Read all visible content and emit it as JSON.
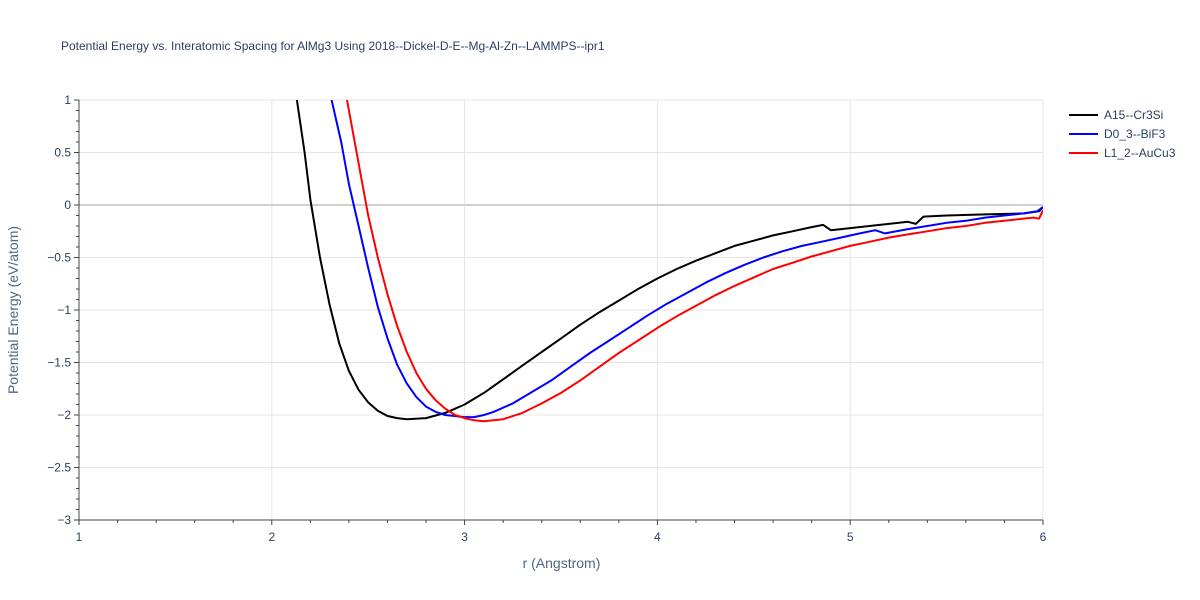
{
  "chart_data": {
    "type": "line",
    "title": "Potential Energy vs. Interatomic Spacing for AlMg3 Using 2018--Dickel-D-E--Mg-Al-Zn--LAMMPS--ipr1",
    "xlabel": "r (Angstrom)",
    "ylabel": "Potential Energy (eV/atom)",
    "xlim": [
      1,
      6
    ],
    "ylim": [
      -3,
      1
    ],
    "x_ticks": [
      1,
      2,
      3,
      4,
      5,
      6
    ],
    "x_tick_labels": [
      "1",
      "2",
      "3",
      "4",
      "5",
      "6"
    ],
    "y_ticks": [
      1,
      0.5,
      0,
      -0.5,
      -1,
      -1.5,
      -2,
      -2.5,
      -3
    ],
    "y_tick_labels": [
      "1",
      "0.5",
      "0",
      "−0.5",
      "−1",
      "−1.5",
      "−2",
      "−2.5",
      "−3"
    ],
    "grid": true,
    "legend_position": "top-right",
    "series": [
      {
        "name": "A15--Cr3Si",
        "color": "#000000",
        "points": [
          [
            2.13,
            1.0
          ],
          [
            2.17,
            0.5
          ],
          [
            2.2,
            0.05
          ],
          [
            2.25,
            -0.5
          ],
          [
            2.3,
            -0.95
          ],
          [
            2.35,
            -1.32
          ],
          [
            2.4,
            -1.58
          ],
          [
            2.45,
            -1.76
          ],
          [
            2.5,
            -1.88
          ],
          [
            2.55,
            -1.96
          ],
          [
            2.6,
            -2.01
          ],
          [
            2.65,
            -2.03
          ],
          [
            2.7,
            -2.04
          ],
          [
            2.8,
            -2.03
          ],
          [
            2.9,
            -1.98
          ],
          [
            3.0,
            -1.9
          ],
          [
            3.1,
            -1.79
          ],
          [
            3.2,
            -1.66
          ],
          [
            3.3,
            -1.53
          ],
          [
            3.4,
            -1.4
          ],
          [
            3.5,
            -1.27
          ],
          [
            3.6,
            -1.14
          ],
          [
            3.7,
            -1.02
          ],
          [
            3.8,
            -0.91
          ],
          [
            3.9,
            -0.8
          ],
          [
            4.0,
            -0.7
          ],
          [
            4.1,
            -0.61
          ],
          [
            4.2,
            -0.53
          ],
          [
            4.3,
            -0.46
          ],
          [
            4.4,
            -0.39
          ],
          [
            4.5,
            -0.34
          ],
          [
            4.6,
            -0.29
          ],
          [
            4.7,
            -0.25
          ],
          [
            4.8,
            -0.21
          ],
          [
            4.86,
            -0.19
          ],
          [
            4.9,
            -0.24
          ],
          [
            5.0,
            -0.22
          ],
          [
            5.1,
            -0.2
          ],
          [
            5.2,
            -0.18
          ],
          [
            5.3,
            -0.16
          ],
          [
            5.34,
            -0.18
          ],
          [
            5.38,
            -0.11
          ],
          [
            5.5,
            -0.1
          ],
          [
            5.7,
            -0.09
          ],
          [
            5.9,
            -0.08
          ],
          [
            5.98,
            -0.06
          ],
          [
            6.0,
            -0.02
          ]
        ]
      },
      {
        "name": "D0_3--BiF3",
        "color": "#0000ff",
        "points": [
          [
            2.31,
            1.0
          ],
          [
            2.36,
            0.6
          ],
          [
            2.4,
            0.2
          ],
          [
            2.45,
            -0.2
          ],
          [
            2.5,
            -0.6
          ],
          [
            2.55,
            -0.97
          ],
          [
            2.6,
            -1.27
          ],
          [
            2.65,
            -1.52
          ],
          [
            2.7,
            -1.7
          ],
          [
            2.75,
            -1.83
          ],
          [
            2.8,
            -1.92
          ],
          [
            2.85,
            -1.97
          ],
          [
            2.9,
            -2.0
          ],
          [
            3.0,
            -2.02
          ],
          [
            3.05,
            -2.02
          ],
          [
            3.1,
            -2.0
          ],
          [
            3.15,
            -1.97
          ],
          [
            3.25,
            -1.89
          ],
          [
            3.35,
            -1.78
          ],
          [
            3.45,
            -1.67
          ],
          [
            3.55,
            -1.54
          ],
          [
            3.65,
            -1.41
          ],
          [
            3.75,
            -1.29
          ],
          [
            3.85,
            -1.17
          ],
          [
            3.95,
            -1.05
          ],
          [
            4.05,
            -0.94
          ],
          [
            4.15,
            -0.84
          ],
          [
            4.25,
            -0.74
          ],
          [
            4.35,
            -0.65
          ],
          [
            4.45,
            -0.57
          ],
          [
            4.55,
            -0.5
          ],
          [
            4.65,
            -0.44
          ],
          [
            4.75,
            -0.39
          ],
          [
            4.85,
            -0.35
          ],
          [
            4.95,
            -0.31
          ],
          [
            5.05,
            -0.27
          ],
          [
            5.13,
            -0.24
          ],
          [
            5.18,
            -0.27
          ],
          [
            5.3,
            -0.23
          ],
          [
            5.4,
            -0.2
          ],
          [
            5.5,
            -0.17
          ],
          [
            5.6,
            -0.15
          ],
          [
            5.7,
            -0.12
          ],
          [
            5.8,
            -0.1
          ],
          [
            5.9,
            -0.08
          ],
          [
            5.97,
            -0.06
          ],
          [
            6.0,
            -0.02
          ]
        ]
      },
      {
        "name": "L1_2--AuCu3",
        "color": "#ff0000",
        "points": [
          [
            2.39,
            1.0
          ],
          [
            2.43,
            0.6
          ],
          [
            2.47,
            0.2
          ],
          [
            2.5,
            -0.1
          ],
          [
            2.55,
            -0.5
          ],
          [
            2.6,
            -0.85
          ],
          [
            2.65,
            -1.15
          ],
          [
            2.7,
            -1.4
          ],
          [
            2.75,
            -1.6
          ],
          [
            2.8,
            -1.75
          ],
          [
            2.85,
            -1.86
          ],
          [
            2.9,
            -1.94
          ],
          [
            2.95,
            -2.0
          ],
          [
            3.0,
            -2.03
          ],
          [
            3.05,
            -2.05
          ],
          [
            3.1,
            -2.06
          ],
          [
            3.2,
            -2.04
          ],
          [
            3.3,
            -1.98
          ],
          [
            3.4,
            -1.89
          ],
          [
            3.5,
            -1.79
          ],
          [
            3.6,
            -1.67
          ],
          [
            3.7,
            -1.54
          ],
          [
            3.8,
            -1.41
          ],
          [
            3.9,
            -1.29
          ],
          [
            4.0,
            -1.17
          ],
          [
            4.1,
            -1.06
          ],
          [
            4.2,
            -0.96
          ],
          [
            4.3,
            -0.86
          ],
          [
            4.4,
            -0.77
          ],
          [
            4.5,
            -0.69
          ],
          [
            4.6,
            -0.61
          ],
          [
            4.7,
            -0.55
          ],
          [
            4.8,
            -0.49
          ],
          [
            4.9,
            -0.44
          ],
          [
            5.0,
            -0.39
          ],
          [
            5.1,
            -0.35
          ],
          [
            5.2,
            -0.31
          ],
          [
            5.3,
            -0.28
          ],
          [
            5.4,
            -0.25
          ],
          [
            5.5,
            -0.22
          ],
          [
            5.6,
            -0.2
          ],
          [
            5.7,
            -0.17
          ],
          [
            5.8,
            -0.15
          ],
          [
            5.9,
            -0.13
          ],
          [
            5.95,
            -0.12
          ],
          [
            5.98,
            -0.13
          ],
          [
            6.0,
            -0.05
          ]
        ]
      }
    ]
  }
}
